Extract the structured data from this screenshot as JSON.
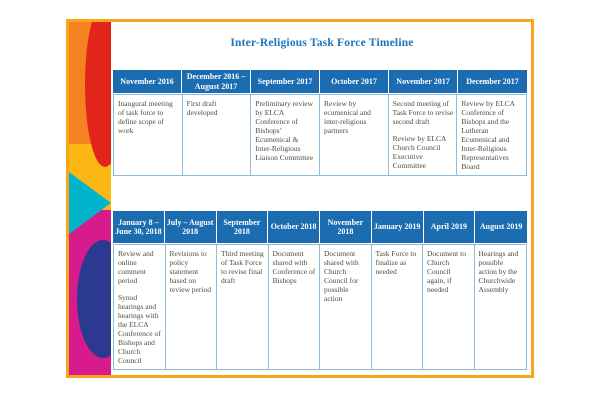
{
  "slide": {
    "title": "Inter-Religious Task Force Timeline"
  },
  "palette": {
    "frame_border": "#F9A51B",
    "title_text": "#1C75BC",
    "header_background": "#1B6CB1",
    "header_text": "#FFFFFF",
    "cell_border": "#8FBCDB",
    "body_text": "#4E4B3F",
    "strip_orange": "#F58220",
    "strip_red": "#E1251B",
    "strip_yellow": "#FDB714",
    "strip_cyan": "#00B5CB",
    "strip_magenta": "#D81B8C",
    "strip_navy": "#2B3990"
  },
  "table1": {
    "columns": [
      {
        "header": "November 2016",
        "body": [
          "Inaugural meeting of task force to define scope of work"
        ]
      },
      {
        "header": "December 2016 – August 2017",
        "body": [
          "First draft developed"
        ]
      },
      {
        "header": "September 2017",
        "body": [
          "Preliminary review by ELCA Conference of Bishops’ Ecumenical & Inter-Religious Liaison Committee"
        ]
      },
      {
        "header": "October 2017",
        "body": [
          "Review by ecumenical and inter-religious partners"
        ]
      },
      {
        "header": "November 2017",
        "body": [
          "Second meeting of Task Force to revise second draft",
          "Review by ELCA Church Council Executive Committee"
        ]
      },
      {
        "header": "December 2017",
        "body": [
          "Review by ELCA Conference of Bishops and the Lutheran Ecumenical and Inter-Religious Representatives Board"
        ]
      }
    ]
  },
  "table2": {
    "columns": [
      {
        "header": "January 8 – June 30, 2018",
        "body": [
          "Review and online comment period",
          "Synod hearings and hearings with the ELCA Conference of Bishops and Church Council"
        ]
      },
      {
        "header": "July – August 2018",
        "body": [
          "Revisions to policy statement based on review period"
        ]
      },
      {
        "header": "September 2018",
        "body": [
          "Third meeting of Task Force to revise final draft"
        ]
      },
      {
        "header": "October 2018",
        "body": [
          "Document shared with Conference of Bishops"
        ]
      },
      {
        "header": "November 2018",
        "body": [
          "Document shared with Church Council for possible action"
        ]
      },
      {
        "header": "January 2019",
        "body": [
          "Task Force to finalize as needed"
        ]
      },
      {
        "header": "April 2019",
        "body": [
          "Document to Church Council again, if needed"
        ]
      },
      {
        "header": "August 2019",
        "body": [
          "Hearings and possible action by the Churchwide Assembly"
        ]
      }
    ]
  }
}
